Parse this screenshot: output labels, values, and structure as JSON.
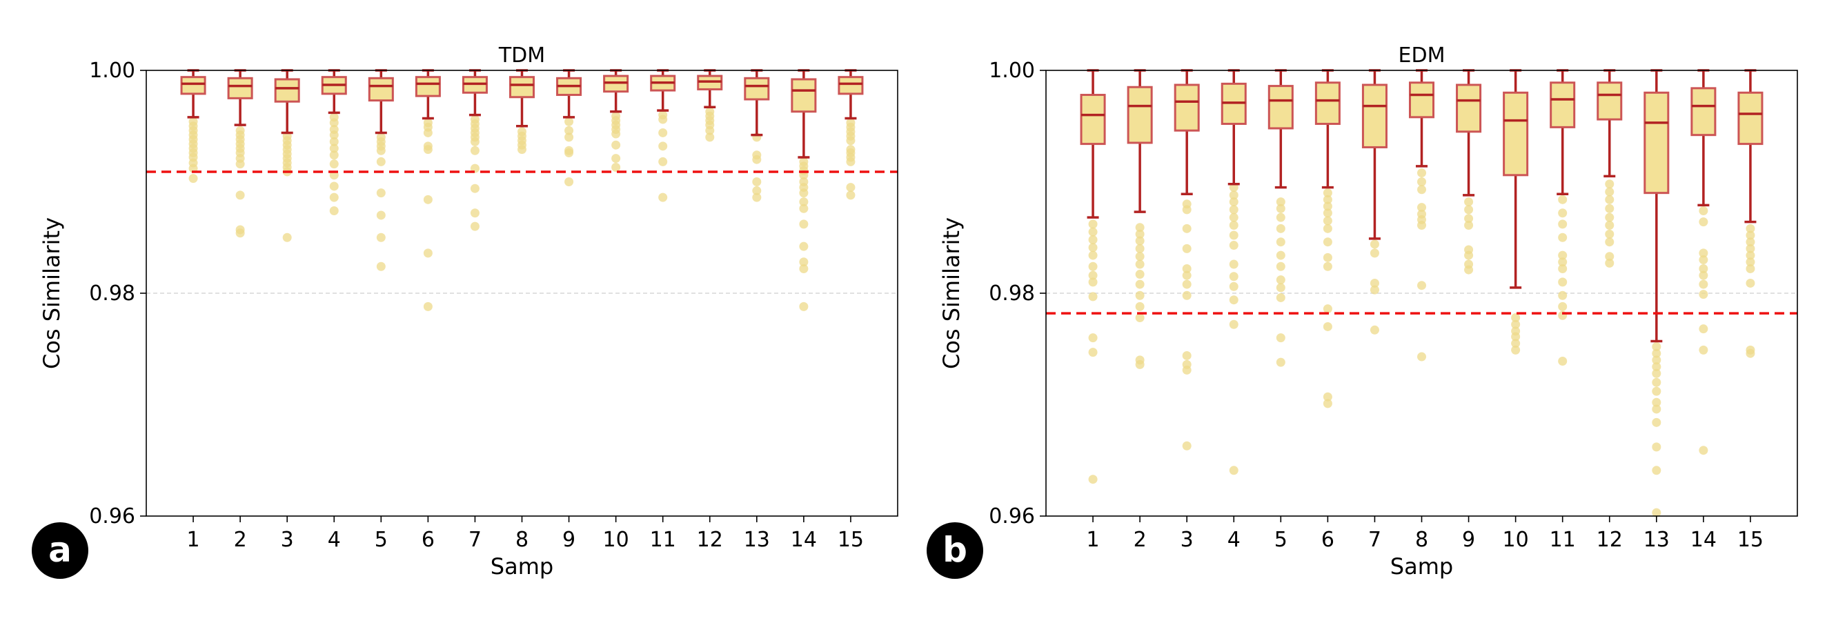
{
  "colors": {
    "box_fill": "#f3e197",
    "box_edge": "#cc5555",
    "whisker": "#b22222",
    "median": "#b22222",
    "outlier": "#eed98a",
    "threshold": "#ee1111",
    "grid": "#d6d6d6"
  },
  "panels": [
    {
      "badge": "a"
    },
    {
      "badge": "b"
    }
  ],
  "chart_data": [
    {
      "type": "box",
      "title": "TDM",
      "xlabel": "Samp",
      "ylabel": "Cos Similarity",
      "ylim": [
        0.96,
        1.0
      ],
      "yticks": [
        0.96,
        0.98,
        1.0
      ],
      "ytick_labels": [
        "0.96",
        "0.98",
        "1.00"
      ],
      "grid_lines": [
        0.98
      ],
      "threshold": 0.9909,
      "categories": [
        "1",
        "2",
        "3",
        "4",
        "5",
        "6",
        "7",
        "8",
        "9",
        "10",
        "11",
        "12",
        "13",
        "14",
        "15"
      ],
      "boxes": [
        {
          "whislo": 0.9958,
          "q1": 0.9979,
          "med": 0.9988,
          "q3": 0.9994,
          "whishi": 1.0,
          "fliers": [
            0.9954,
            0.995,
            0.9946,
            0.9942,
            0.9938,
            0.9934,
            0.993,
            0.9926,
            0.9922,
            0.9917,
            0.9912,
            0.9903
          ]
        },
        {
          "whislo": 0.9951,
          "q1": 0.9975,
          "med": 0.9986,
          "q3": 0.9993,
          "whishi": 1.0,
          "fliers": [
            0.9946,
            0.9942,
            0.9938,
            0.9934,
            0.993,
            0.9926,
            0.9921,
            0.9916,
            0.9888,
            0.9857,
            0.9854
          ]
        },
        {
          "whislo": 0.9944,
          "q1": 0.9972,
          "med": 0.9984,
          "q3": 0.9992,
          "whishi": 1.0,
          "fliers": [
            0.9941,
            0.9937,
            0.9933,
            0.9929,
            0.9925,
            0.9921,
            0.9917,
            0.9913,
            0.9909,
            0.985
          ]
        },
        {
          "whislo": 0.9962,
          "q1": 0.9979,
          "med": 0.9987,
          "q3": 0.9994,
          "whishi": 1.0,
          "fliers": [
            0.9958,
            0.9953,
            0.9947,
            0.9942,
            0.9936,
            0.993,
            0.9924,
            0.9916,
            0.9906,
            0.9896,
            0.9886,
            0.9874
          ]
        },
        {
          "whislo": 0.9944,
          "q1": 0.9973,
          "med": 0.9986,
          "q3": 0.9993,
          "whishi": 1.0,
          "fliers": [
            0.994,
            0.9936,
            0.9932,
            0.9928,
            0.9918,
            0.989,
            0.987,
            0.985,
            0.9824
          ]
        },
        {
          "whislo": 0.9957,
          "q1": 0.9977,
          "med": 0.9988,
          "q3": 0.9994,
          "whishi": 1.0,
          "fliers": [
            0.9953,
            0.9949,
            0.9944,
            0.9932,
            0.9929,
            0.9884,
            0.9836,
            0.9788
          ]
        },
        {
          "whislo": 0.996,
          "q1": 0.998,
          "med": 0.9988,
          "q3": 0.9994,
          "whishi": 1.0,
          "fliers": [
            0.9956,
            0.9952,
            0.9948,
            0.9944,
            0.994,
            0.9936,
            0.9928,
            0.9912,
            0.9894,
            0.9872,
            0.986
          ]
        },
        {
          "whislo": 0.995,
          "q1": 0.9976,
          "med": 0.9987,
          "q3": 0.9994,
          "whishi": 1.0,
          "fliers": [
            0.9945,
            0.9941,
            0.9937,
            0.9933,
            0.9929
          ]
        },
        {
          "whislo": 0.9958,
          "q1": 0.9978,
          "med": 0.9986,
          "q3": 0.9993,
          "whishi": 1.0,
          "fliers": [
            0.9954,
            0.9946,
            0.994,
            0.9928,
            0.9926,
            0.99
          ]
        },
        {
          "whislo": 0.9963,
          "q1": 0.9981,
          "med": 0.9989,
          "q3": 0.9995,
          "whishi": 1.0,
          "fliers": [
            0.9959,
            0.9955,
            0.9951,
            0.9947,
            0.9943,
            0.9933,
            0.9921,
            0.9913
          ]
        },
        {
          "whislo": 0.9964,
          "q1": 0.9982,
          "med": 0.9989,
          "q3": 0.9995,
          "whishi": 1.0,
          "fliers": [
            0.996,
            0.9956,
            0.9944,
            0.9932,
            0.9918,
            0.9886
          ]
        },
        {
          "whislo": 0.9967,
          "q1": 0.9983,
          "med": 0.999,
          "q3": 0.9995,
          "whishi": 1.0,
          "fliers": [
            0.9963,
            0.9959,
            0.9955,
            0.9951,
            0.9946,
            0.994
          ]
        },
        {
          "whislo": 0.9942,
          "q1": 0.9974,
          "med": 0.9986,
          "q3": 0.9993,
          "whishi": 1.0,
          "fliers": [
            0.994,
            0.9924,
            0.992,
            0.99,
            0.9892,
            0.9886
          ]
        },
        {
          "whislo": 0.9922,
          "q1": 0.9963,
          "med": 0.9982,
          "q3": 0.9992,
          "whishi": 1.0,
          "fliers": [
            0.9918,
            0.9914,
            0.991,
            0.9906,
            0.99,
            0.9895,
            0.989,
            0.9882,
            0.9876,
            0.9862,
            0.9842,
            0.9828,
            0.9822,
            0.9788
          ]
        },
        {
          "whislo": 0.9957,
          "q1": 0.9979,
          "med": 0.9988,
          "q3": 0.9994,
          "whishi": 1.0,
          "fliers": [
            0.9953,
            0.9949,
            0.9945,
            0.9941,
            0.9937,
            0.9929,
            0.9926,
            0.9922,
            0.9918,
            0.9895,
            0.9888
          ]
        }
      ]
    },
    {
      "type": "box",
      "title": "EDM",
      "xlabel": "Samp",
      "ylabel": "Cos Similarity",
      "ylim": [
        0.96,
        1.0
      ],
      "yticks": [
        0.96,
        0.98,
        1.0
      ],
      "ytick_labels": [
        "0.96",
        "0.98",
        "1.00"
      ],
      "grid_lines": [
        0.98
      ],
      "threshold": 0.9782,
      "categories": [
        "1",
        "2",
        "3",
        "4",
        "5",
        "6",
        "7",
        "8",
        "9",
        "10",
        "11",
        "12",
        "13",
        "14",
        "15"
      ],
      "boxes": [
        {
          "whislo": 0.9868,
          "q1": 0.9934,
          "med": 0.996,
          "q3": 0.9978,
          "whishi": 1.0,
          "fliers": [
            0.9862,
            0.9855,
            0.9848,
            0.9841,
            0.9834,
            0.9824,
            0.9816,
            0.981,
            0.9797,
            0.976,
            0.9747,
            0.9633
          ]
        },
        {
          "whislo": 0.9873,
          "q1": 0.9935,
          "med": 0.9968,
          "q3": 0.9985,
          "whishi": 1.0,
          "fliers": [
            0.9859,
            0.9853,
            0.9847,
            0.984,
            0.9833,
            0.9826,
            0.9817,
            0.9808,
            0.9798,
            0.9788,
            0.9778,
            0.974,
            0.9736
          ]
        },
        {
          "whislo": 0.9889,
          "q1": 0.9946,
          "med": 0.9972,
          "q3": 0.9987,
          "whishi": 1.0,
          "fliers": [
            0.988,
            0.9875,
            0.9858,
            0.984,
            0.9822,
            0.9816,
            0.9808,
            0.9798,
            0.9744,
            0.9736,
            0.9731,
            0.9663
          ]
        },
        {
          "whislo": 0.9898,
          "q1": 0.9952,
          "med": 0.9971,
          "q3": 0.9988,
          "whishi": 1.0,
          "fliers": [
            0.9895,
            0.9888,
            0.9882,
            0.9875,
            0.9868,
            0.9861,
            0.9852,
            0.9843,
            0.9826,
            0.9815,
            0.9806,
            0.9794,
            0.9772,
            0.9641
          ]
        },
        {
          "whislo": 0.9895,
          "q1": 0.9948,
          "med": 0.9973,
          "q3": 0.9986,
          "whishi": 1.0,
          "fliers": [
            0.9882,
            0.9876,
            0.9868,
            0.9858,
            0.9846,
            0.9834,
            0.9824,
            0.9812,
            0.9805,
            0.9796,
            0.976,
            0.9738
          ]
        },
        {
          "whislo": 0.9895,
          "q1": 0.9952,
          "med": 0.9973,
          "q3": 0.9989,
          "whishi": 1.0,
          "fliers": [
            0.989,
            0.9884,
            0.9878,
            0.9872,
            0.9865,
            0.9858,
            0.9846,
            0.9832,
            0.9824,
            0.9786,
            0.977,
            0.9707,
            0.9701
          ]
        },
        {
          "whislo": 0.9849,
          "q1": 0.9931,
          "med": 0.9968,
          "q3": 0.9987,
          "whishi": 1.0,
          "fliers": [
            0.9844,
            0.9836,
            0.9809,
            0.9803,
            0.9767
          ]
        },
        {
          "whislo": 0.9914,
          "q1": 0.9958,
          "med": 0.9978,
          "q3": 0.9989,
          "whishi": 1.0,
          "fliers": [
            0.9908,
            0.99,
            0.9893,
            0.9877,
            0.9871,
            0.9866,
            0.9861,
            0.9807,
            0.9743
          ]
        },
        {
          "whislo": 0.9888,
          "q1": 0.9945,
          "med": 0.9973,
          "q3": 0.9987,
          "whishi": 1.0,
          "fliers": [
            0.9882,
            0.9875,
            0.9867,
            0.9861,
            0.9839,
            0.9834,
            0.9826,
            0.9821
          ]
        },
        {
          "whislo": 0.9805,
          "q1": 0.9906,
          "med": 0.9955,
          "q3": 0.998,
          "whishi": 1.0,
          "fliers": [
            0.9778,
            0.9772,
            0.9766,
            0.9761,
            0.9755,
            0.9749
          ]
        },
        {
          "whislo": 0.9889,
          "q1": 0.9949,
          "med": 0.9974,
          "q3": 0.9989,
          "whishi": 1.0,
          "fliers": [
            0.9884,
            0.9872,
            0.9862,
            0.985,
            0.9834,
            0.9828,
            0.9822,
            0.981,
            0.9798,
            0.9788,
            0.978,
            0.9739
          ]
        },
        {
          "whislo": 0.9905,
          "q1": 0.9956,
          "med": 0.9978,
          "q3": 0.9989,
          "whishi": 1.0,
          "fliers": [
            0.9898,
            0.9891,
            0.9884,
            0.9876,
            0.9868,
            0.9861,
            0.9853,
            0.9846,
            0.9833,
            0.9827
          ]
        },
        {
          "whislo": 0.9757,
          "q1": 0.989,
          "med": 0.9953,
          "q3": 0.998,
          "whishi": 1.0,
          "fliers": [
            0.9752,
            0.9746,
            0.974,
            0.9734,
            0.9728,
            0.972,
            0.9712,
            0.9702,
            0.9696,
            0.9684,
            0.9662,
            0.9641,
            0.9603
          ]
        },
        {
          "whislo": 0.9879,
          "q1": 0.9942,
          "med": 0.9968,
          "q3": 0.9984,
          "whishi": 1.0,
          "fliers": [
            0.9874,
            0.9864,
            0.9836,
            0.983,
            0.9822,
            0.9816,
            0.9808,
            0.9799,
            0.9768,
            0.9749,
            0.9659
          ]
        },
        {
          "whislo": 0.9864,
          "q1": 0.9934,
          "med": 0.9961,
          "q3": 0.998,
          "whishi": 1.0,
          "fliers": [
            0.9858,
            0.9852,
            0.9846,
            0.984,
            0.9834,
            0.9828,
            0.9822,
            0.9809,
            0.9749,
            0.9746
          ]
        }
      ]
    }
  ]
}
